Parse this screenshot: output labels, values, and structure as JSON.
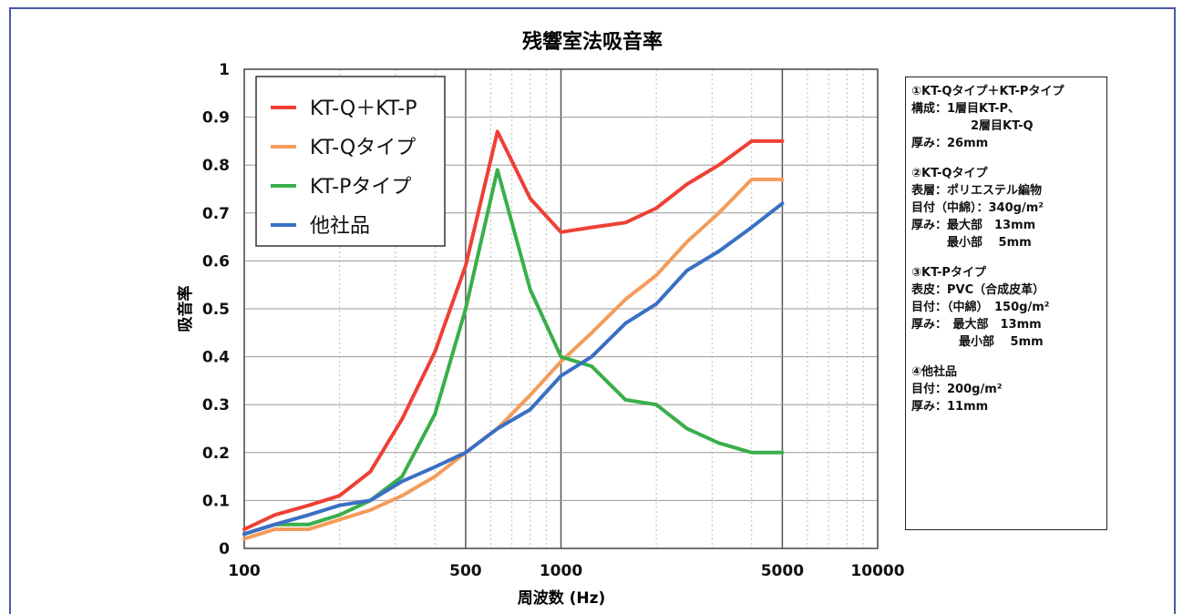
{
  "chart_data": {
    "type": "line",
    "title": "残響室法吸音率",
    "xlabel": "周波数  (Hz)",
    "ylabel": "吸音率",
    "x_scale": "log",
    "xlim": [
      100,
      10000
    ],
    "ylim": [
      0,
      1
    ],
    "x_ticks": [
      "100",
      "500",
      "1000",
      "5000",
      "10000"
    ],
    "y_ticks": [
      "0",
      "0.1",
      "0.2",
      "0.3",
      "0.4",
      "0.5",
      "0.6",
      "0.7",
      "0.8",
      "0.9",
      "1"
    ],
    "grid": true,
    "legend_position": "top-left",
    "x": [
      100,
      125,
      160,
      200,
      250,
      315,
      400,
      500,
      630,
      800,
      1000,
      1250,
      1600,
      2000,
      2500,
      3150,
      4000,
      5000
    ],
    "series": [
      {
        "name": "KT-Q＋KT-P",
        "color": "#ee4035",
        "values": [
          0.04,
          0.07,
          0.09,
          0.11,
          0.16,
          0.27,
          0.41,
          0.59,
          0.87,
          0.73,
          0.66,
          0.67,
          0.68,
          0.71,
          0.76,
          0.8,
          0.85,
          0.85
        ]
      },
      {
        "name": "KT-Qタイプ",
        "color": "#f49c5a",
        "values": [
          0.02,
          0.04,
          0.04,
          0.06,
          0.08,
          0.11,
          0.15,
          0.2,
          0.25,
          0.32,
          0.39,
          0.45,
          0.52,
          0.57,
          0.64,
          0.7,
          0.77,
          0.77
        ]
      },
      {
        "name": "KT-Pタイプ",
        "color": "#3aae4a",
        "values": [
          0.03,
          0.05,
          0.05,
          0.07,
          0.1,
          0.15,
          0.28,
          0.5,
          0.79,
          0.54,
          0.4,
          0.38,
          0.31,
          0.3,
          0.25,
          0.22,
          0.2,
          0.2
        ]
      },
      {
        "name": "他社品",
        "color": "#3b6fc4",
        "values": [
          0.03,
          0.05,
          0.07,
          0.09,
          0.1,
          0.14,
          0.17,
          0.2,
          0.25,
          0.29,
          0.36,
          0.4,
          0.47,
          0.51,
          0.58,
          0.62,
          0.67,
          0.72
        ]
      }
    ]
  },
  "notes": [
    {
      "lines": [
        "①KT-Qタイプ＋KT-Pタイプ",
        "構成：1層目KT-P、",
        "　　　　　2層目KT-Q",
        "厚み：26mm"
      ]
    },
    {
      "lines": [
        "②KT-Qタイプ",
        "表層：ポリエステル編物",
        "目付（中綿）：340g/m²",
        "厚み：最大部　13mm",
        "　　　最小部　 5mm"
      ]
    },
    {
      "lines": [
        "③KT-Pタイプ",
        "表皮：PVC（合成皮革）",
        "目付：（中綿）　150g/m²",
        "厚み：　最大部　13mm",
        "　　　　最小部　 5mm"
      ]
    },
    {
      "lines": [
        "④他社品",
        "目付：200g/m²",
        "厚み：11mm"
      ]
    }
  ]
}
